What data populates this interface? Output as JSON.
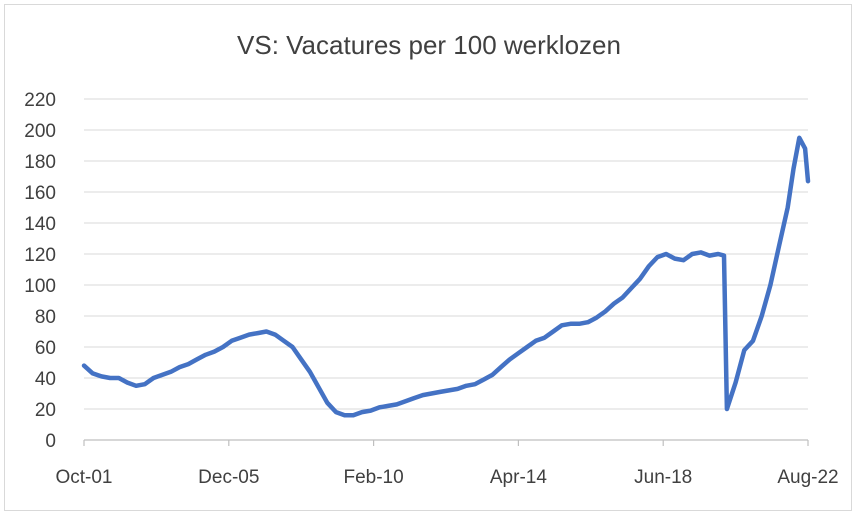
{
  "chart_data": {
    "type": "line",
    "title": "VS: Vacatures per 100 werklozen",
    "xlabel": "",
    "ylabel": "",
    "ylim": [
      0,
      220
    ],
    "yticks": [
      0,
      20,
      40,
      60,
      80,
      100,
      120,
      140,
      160,
      180,
      200,
      220
    ],
    "xticks": [
      "Oct-01",
      "Dec-05",
      "Feb-10",
      "Apr-14",
      "Jun-18",
      "Aug-22"
    ],
    "xlim": [
      "2001-10",
      "2022-08"
    ],
    "grid": true,
    "legend": "none",
    "line_color": "#4472C4",
    "series": [
      {
        "x": [
          "2001-10",
          "2002-01",
          "2002-04",
          "2002-07",
          "2002-10",
          "2003-01",
          "2003-04",
          "2003-07",
          "2003-10",
          "2004-01",
          "2004-04",
          "2004-07",
          "2004-10",
          "2005-01",
          "2005-04",
          "2005-07",
          "2005-10",
          "2006-01",
          "2006-04",
          "2006-07",
          "2006-10",
          "2007-01",
          "2007-04",
          "2007-07",
          "2007-10",
          "2008-01",
          "2008-04",
          "2008-07",
          "2008-10",
          "2009-01",
          "2009-04",
          "2009-07",
          "2009-10",
          "2010-01",
          "2010-04",
          "2010-07",
          "2010-10",
          "2011-01",
          "2011-04",
          "2011-07",
          "2011-10",
          "2012-01",
          "2012-04",
          "2012-07",
          "2012-10",
          "2013-01",
          "2013-04",
          "2013-07",
          "2013-10",
          "2014-01",
          "2014-04",
          "2014-07",
          "2014-10",
          "2015-01",
          "2015-04",
          "2015-07",
          "2015-10",
          "2016-01",
          "2016-04",
          "2016-07",
          "2016-10",
          "2017-01",
          "2017-04",
          "2017-07",
          "2017-10",
          "2018-01",
          "2018-04",
          "2018-07",
          "2018-10",
          "2019-01",
          "2019-04",
          "2019-07",
          "2019-10",
          "2020-01",
          "2020-03",
          "2020-04",
          "2020-07",
          "2020-10",
          "2021-01",
          "2021-04",
          "2021-07",
          "2021-10",
          "2022-01",
          "2022-03",
          "2022-05",
          "2022-07",
          "2022-08"
        ],
        "values": [
          48,
          43,
          41,
          40,
          40,
          37,
          35,
          36,
          40,
          42,
          44,
          47,
          49,
          52,
          55,
          57,
          60,
          64,
          66,
          68,
          69,
          70,
          68,
          64,
          60,
          52,
          44,
          34,
          24,
          18,
          16,
          16,
          18,
          19,
          21,
          22,
          23,
          25,
          27,
          29,
          30,
          31,
          32,
          33,
          35,
          36,
          39,
          42,
          47,
          52,
          56,
          60,
          64,
          66,
          70,
          74,
          75,
          75,
          76,
          79,
          83,
          88,
          92,
          98,
          104,
          112,
          118,
          120,
          117,
          116,
          120,
          121,
          119,
          120,
          119,
          20,
          37,
          58,
          64,
          80,
          100,
          125,
          150,
          175,
          195,
          188,
          167
        ]
      }
    ]
  }
}
